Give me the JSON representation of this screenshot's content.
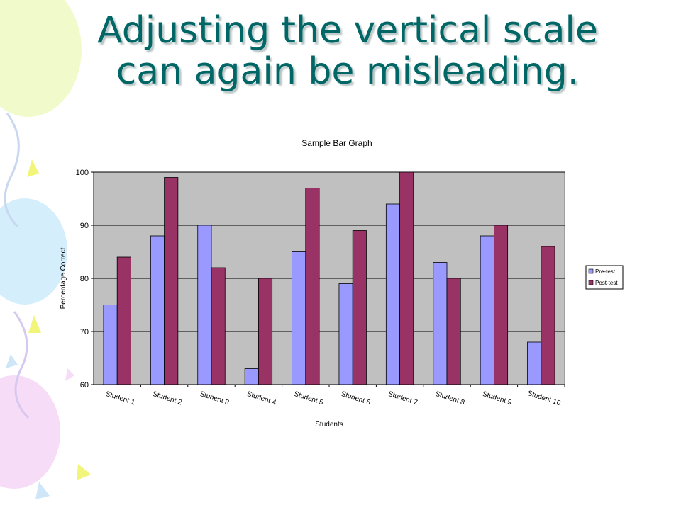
{
  "slide": {
    "title_line1": "Adjusting the vertical scale",
    "title_line2": "can again be misleading."
  },
  "colors": {
    "title": "#006666",
    "pre_test": "#9999FF",
    "post_test": "#993366",
    "plot_background": "#C0C0C0"
  },
  "chart_data": {
    "type": "bar",
    "title": "Sample Bar Graph",
    "xlabel": "Students",
    "ylabel": "Percentage Correct",
    "ylim": [
      60,
      100
    ],
    "yticks": [
      60,
      70,
      80,
      90,
      100
    ],
    "grid": true,
    "legend_position": "right",
    "categories": [
      "Student 1",
      "Student 2",
      "Student 3",
      "Student 4",
      "Student 5",
      "Student 6",
      "Student 7",
      "Student 8",
      "Student 9",
      "Student 10"
    ],
    "series": [
      {
        "name": "Pre-test",
        "color": "#9999FF",
        "values": [
          75,
          88,
          90,
          63,
          85,
          79,
          94,
          83,
          88,
          68
        ]
      },
      {
        "name": "Post-test",
        "color": "#993366",
        "values": [
          84,
          99,
          82,
          80,
          97,
          89,
          100,
          80,
          90,
          86
        ]
      }
    ]
  }
}
